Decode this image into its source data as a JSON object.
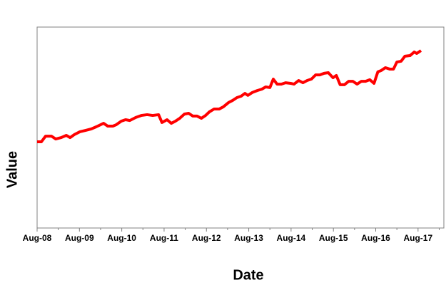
{
  "chart_data": {
    "type": "line",
    "xlabel": "Date",
    "ylabel": "Value",
    "x": [
      2008.58,
      2008.68,
      2008.78,
      2008.92,
      2009.02,
      2009.15,
      2009.27,
      2009.36,
      2009.46,
      2009.59,
      2009.73,
      2009.86,
      2009.98,
      2010.15,
      2010.25,
      2010.37,
      2010.45,
      2010.57,
      2010.67,
      2010.77,
      2010.91,
      2011.04,
      2011.18,
      2011.31,
      2011.45,
      2011.53,
      2011.65,
      2011.75,
      2011.85,
      2011.95,
      2012.06,
      2012.16,
      2012.26,
      2012.36,
      2012.46,
      2012.56,
      2012.65,
      2012.76,
      2012.88,
      2012.98,
      2013.1,
      2013.2,
      2013.3,
      2013.4,
      2013.49,
      2013.56,
      2013.66,
      2013.78,
      2013.89,
      2013.98,
      2014.08,
      2014.16,
      2014.25,
      2014.35,
      2014.45,
      2014.57,
      2014.65,
      2014.76,
      2014.86,
      2014.96,
      2015.06,
      2015.16,
      2015.26,
      2015.36,
      2015.46,
      2015.57,
      2015.65,
      2015.74,
      2015.84,
      2015.94,
      2016.04,
      2016.14,
      2016.24,
      2016.34,
      2016.44,
      2016.54,
      2016.63,
      2016.71,
      2016.81,
      2016.91,
      2017.0,
      2017.08,
      2017.18,
      2017.27,
      2017.39,
      2017.49,
      2017.55,
      2017.65
    ],
    "series": [
      {
        "color": "#ff0000",
        "values": [
          42.9,
          42.9,
          45.7,
          45.7,
          44.3,
          45.0,
          46.1,
          45.0,
          46.5,
          47.9,
          48.6,
          49.3,
          50.4,
          52.1,
          50.7,
          50.7,
          51.4,
          53.2,
          53.9,
          53.5,
          55.0,
          56.0,
          56.4,
          56.0,
          56.4,
          52.5,
          53.9,
          52.1,
          53.2,
          54.6,
          56.7,
          57.1,
          55.7,
          55.7,
          54.6,
          56.0,
          57.8,
          59.2,
          59.2,
          60.3,
          62.4,
          63.5,
          64.9,
          65.6,
          67.0,
          66.0,
          67.4,
          68.4,
          69.1,
          70.2,
          69.9,
          74.1,
          71.6,
          71.6,
          72.3,
          72.0,
          71.6,
          73.4,
          72.3,
          73.4,
          74.1,
          76.2,
          76.2,
          77.0,
          77.3,
          74.8,
          75.9,
          71.3,
          71.3,
          73.0,
          73.0,
          71.6,
          73.0,
          73.0,
          73.8,
          72.0,
          77.7,
          78.4,
          79.8,
          79.1,
          79.1,
          82.6,
          83.0,
          85.5,
          85.8,
          87.6,
          86.9,
          88.3
        ]
      }
    ],
    "xlim": [
      2008.58,
      2018.19
    ],
    "ylim": [
      0,
      100
    ],
    "xticks": [
      {
        "value": 2008.58,
        "label": "Aug-08"
      },
      {
        "value": 2009.58,
        "label": "Aug-09"
      },
      {
        "value": 2010.58,
        "label": "Aug-10"
      },
      {
        "value": 2011.58,
        "label": "Aug-11"
      },
      {
        "value": 2012.58,
        "label": "Aug-12"
      },
      {
        "value": 2013.58,
        "label": "Aug-13"
      },
      {
        "value": 2014.58,
        "label": "Aug-14"
      },
      {
        "value": 2015.58,
        "label": "Aug-15"
      },
      {
        "value": 2016.58,
        "label": "Aug-16"
      },
      {
        "value": 2017.58,
        "label": "Aug-17"
      }
    ]
  }
}
